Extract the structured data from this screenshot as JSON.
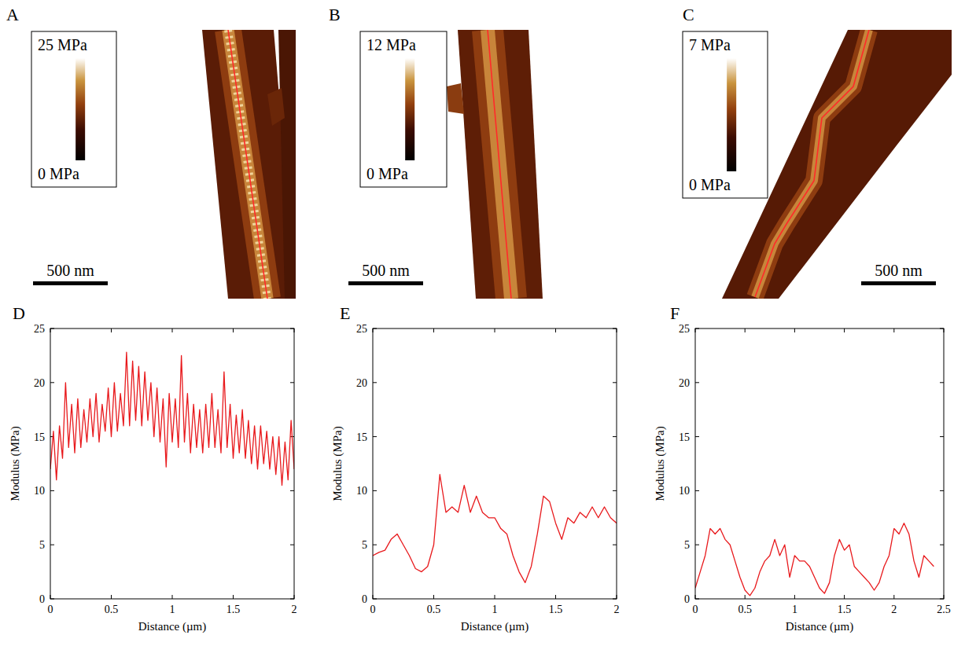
{
  "chart_data": [
    {
      "type": "image",
      "panel": "A",
      "colorbar": {
        "range": [
          0,
          25
        ],
        "ticks": [
          {
            "value": 0,
            "label": "0 MPa"
          },
          {
            "value": 25,
            "label": "25 MPa"
          }
        ]
      },
      "scale_bar": {
        "value": 500,
        "label": "500 nm"
      }
    },
    {
      "type": "image",
      "panel": "B",
      "colorbar": {
        "range": [
          0,
          12
        ],
        "ticks": [
          {
            "value": 0,
            "label": "0 MPa"
          },
          {
            "value": 12,
            "label": "12 MPa"
          }
        ]
      },
      "scale_bar": {
        "value": 500,
        "label": "500 nm"
      }
    },
    {
      "type": "image",
      "panel": "C",
      "colorbar": {
        "range": [
          0,
          7
        ],
        "ticks": [
          {
            "value": 0,
            "label": "0 MPa"
          },
          {
            "value": 7,
            "label": "7 MPa"
          }
        ]
      },
      "scale_bar": {
        "value": 500,
        "label": "500 nm"
      }
    },
    {
      "type": "line",
      "panel": "D",
      "x_label": "Distance (µm)",
      "y_label": "Modulus (MPa)",
      "color": "#e8191c",
      "x": [
        0,
        0.025,
        0.05,
        0.075,
        0.1,
        0.125,
        0.15,
        0.175,
        0.2,
        0.225,
        0.25,
        0.275,
        0.3,
        0.325,
        0.35,
        0.375,
        0.4,
        0.425,
        0.45,
        0.475,
        0.5,
        0.525,
        0.55,
        0.575,
        0.6,
        0.625,
        0.65,
        0.675,
        0.7,
        0.725,
        0.75,
        0.775,
        0.8,
        0.825,
        0.85,
        0.875,
        0.9,
        0.925,
        0.95,
        0.975,
        1,
        1.025,
        1.05,
        1.075,
        1.1,
        1.125,
        1.15,
        1.175,
        1.2,
        1.225,
        1.25,
        1.275,
        1.3,
        1.325,
        1.35,
        1.375,
        1.4,
        1.425,
        1.45,
        1.475,
        1.5,
        1.525,
        1.55,
        1.575,
        1.6,
        1.625,
        1.65,
        1.675,
        1.7,
        1.725,
        1.75,
        1.775,
        1.8,
        1.825,
        1.85,
        1.875,
        1.9,
        1.925,
        1.95,
        1.975,
        2
      ],
      "values": [
        12,
        15.5,
        11,
        16,
        13,
        20,
        14,
        18,
        13.5,
        18.5,
        14,
        17.5,
        14.5,
        18.5,
        15,
        19,
        14.5,
        18,
        15.5,
        19.5,
        15,
        20,
        15.5,
        19,
        16,
        22.8,
        16,
        22,
        16.5,
        21.5,
        16,
        21,
        16.5,
        20,
        15,
        19.5,
        14.5,
        18.5,
        12.2,
        19,
        14.5,
        18.5,
        14,
        22.5,
        14.5,
        19,
        13.5,
        18,
        14,
        17.5,
        13.5,
        18,
        14,
        19,
        14,
        17.5,
        13.5,
        21,
        14,
        18,
        13,
        17,
        13.5,
        17.5,
        13,
        16.5,
        12.5,
        16,
        12,
        16,
        12.5,
        15.5,
        12,
        15,
        11.5,
        15,
        10.5,
        14.5,
        11,
        16.5,
        12
      ],
      "xlim": [
        0,
        2
      ],
      "xticks": [
        0,
        0.5,
        1,
        1.5,
        2
      ],
      "ylim": [
        0,
        25
      ],
      "yticks": [
        0,
        5,
        10,
        15,
        20,
        25
      ]
    },
    {
      "type": "line",
      "panel": "E",
      "x_label": "Distance (µm)",
      "y_label": "Modulus (MPa)",
      "color": "#e8191c",
      "x": [
        0,
        0.05,
        0.1,
        0.15,
        0.2,
        0.25,
        0.3,
        0.35,
        0.4,
        0.45,
        0.5,
        0.55,
        0.6,
        0.65,
        0.7,
        0.75,
        0.8,
        0.85,
        0.9,
        0.95,
        1,
        1.05,
        1.1,
        1.15,
        1.2,
        1.25,
        1.3,
        1.35,
        1.4,
        1.45,
        1.5,
        1.55,
        1.6,
        1.65,
        1.7,
        1.75,
        1.8,
        1.85,
        1.9,
        1.95,
        2
      ],
      "values": [
        4,
        4.3,
        4.5,
        5.5,
        6,
        5,
        4,
        2.8,
        2.5,
        3,
        5,
        11.5,
        8,
        8.5,
        8,
        10.5,
        8,
        9.5,
        8,
        7.5,
        7.5,
        6.5,
        6,
        4,
        2.5,
        1.5,
        3,
        6,
        9.5,
        9,
        7,
        5.5,
        7.5,
        7,
        8,
        7.5,
        8.5,
        7.5,
        8.5,
        7.5,
        7
      ],
      "xlim": [
        0,
        2
      ],
      "xticks": [
        0,
        0.5,
        1,
        1.5,
        2
      ],
      "ylim": [
        0,
        25
      ],
      "yticks": [
        0,
        5,
        10,
        15,
        20,
        25
      ]
    },
    {
      "type": "line",
      "panel": "F",
      "x_label": "Distance (µm)",
      "y_label": "Modulus (MPa)",
      "color": "#e8191c",
      "x": [
        0,
        0.05,
        0.1,
        0.15,
        0.2,
        0.25,
        0.3,
        0.35,
        0.4,
        0.45,
        0.5,
        0.55,
        0.6,
        0.65,
        0.7,
        0.75,
        0.8,
        0.85,
        0.9,
        0.95,
        1,
        1.05,
        1.1,
        1.15,
        1.2,
        1.25,
        1.3,
        1.35,
        1.4,
        1.45,
        1.5,
        1.55,
        1.6,
        1.65,
        1.7,
        1.75,
        1.8,
        1.85,
        1.9,
        1.95,
        2,
        2.05,
        2.1,
        2.15,
        2.2,
        2.25,
        2.3,
        2.35,
        2.4
      ],
      "values": [
        1,
        2.5,
        4,
        6.5,
        6,
        6.5,
        5.5,
        5,
        3.5,
        2,
        0.8,
        0.3,
        1,
        2.5,
        3.5,
        4,
        5.5,
        4,
        5,
        2,
        4,
        3.5,
        3.5,
        3,
        2,
        1,
        0.5,
        1.5,
        4,
        5.5,
        4.5,
        5,
        3,
        2.5,
        2,
        1.5,
        0.8,
        1.5,
        3,
        4,
        6.5,
        6,
        7,
        6,
        3.5,
        2,
        4,
        3.5,
        3
      ],
      "xlim": [
        0,
        2.5
      ],
      "xticks": [
        0,
        0.5,
        1,
        1.5,
        2,
        2.5
      ],
      "ylim": [
        0,
        25
      ],
      "yticks": [
        0,
        5,
        10,
        15,
        20,
        25
      ]
    }
  ]
}
